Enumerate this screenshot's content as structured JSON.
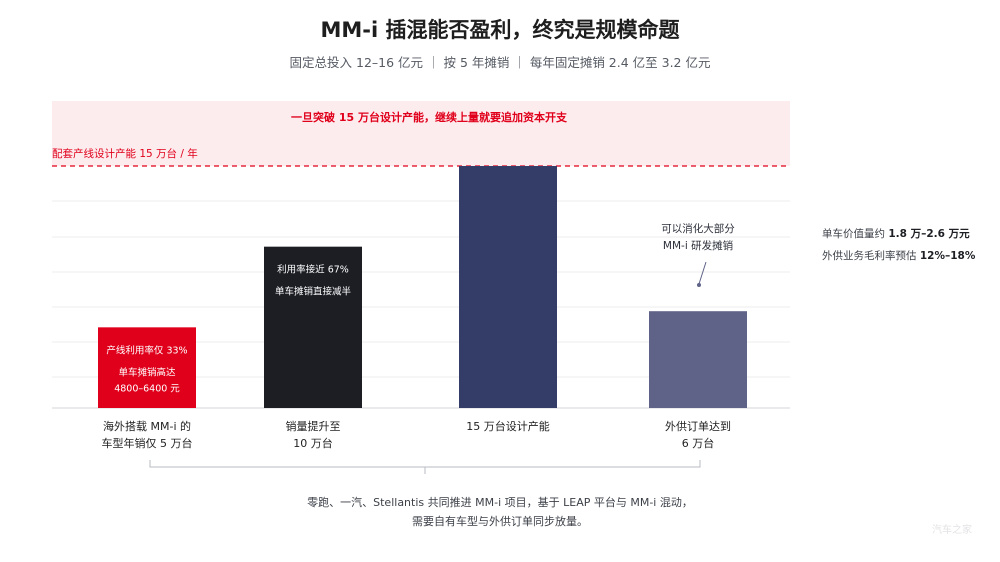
{
  "title": "MM-i 插混能否盈利，终究是规模命题",
  "subtitle": "固定总投入 12–16 亿元 ｜ 按 5 年摊销 ｜ 每年固定摊销 2.4 亿至 3.2 亿元",
  "side_note": {
    "line1_label": "单车价值量约 ",
    "line1_value": "1.8 万–2.6 万元",
    "line2_label": "外供业务毛利率预估 ",
    "line2_value": "12%–18%"
  },
  "footnote": {
    "line1": "零跑、一汽、Stellantis 共同推进 MM-i 项目，基于 LEAP 平台与 MM-i 混动，",
    "line2": "需要自有车型与外供订单同步放量。"
  },
  "watermark": "汽车之家",
  "chart_data": {
    "type": "bar",
    "unit": "万台",
    "ylim": [
      0,
      15
    ],
    "capacity_line": {
      "value": 15,
      "label": "配套产线设计产能 15 万台 / 年"
    },
    "over_capacity_note": "一旦突破 15 万台设计产能，继续上量就要追加资本开支",
    "categories": [
      [
        "海外搭载 MM-i 的",
        "车型年销仅 5 万台"
      ],
      [
        "销量提升至",
        "10 万台"
      ],
      [
        "15 万台设计产能"
      ],
      [
        "外供订单达到",
        "6 万台"
      ]
    ],
    "values": [
      5,
      10,
      15,
      6
    ],
    "colors": [
      "#e0001b",
      "#1c1e24",
      "#343c68",
      "#5f6388"
    ],
    "inner_labels": [
      [
        "产线利用率仅 33%",
        "",
        "单车摊销高达",
        "4800–6400 元"
      ],
      [
        "利用率接近 67%",
        "",
        "单车摊销直接减半"
      ],
      [],
      []
    ],
    "callout": {
      "bar_index": 3,
      "lines": [
        "可以消化大部分",
        "MM-i 研发摊销"
      ]
    },
    "grid": true
  }
}
